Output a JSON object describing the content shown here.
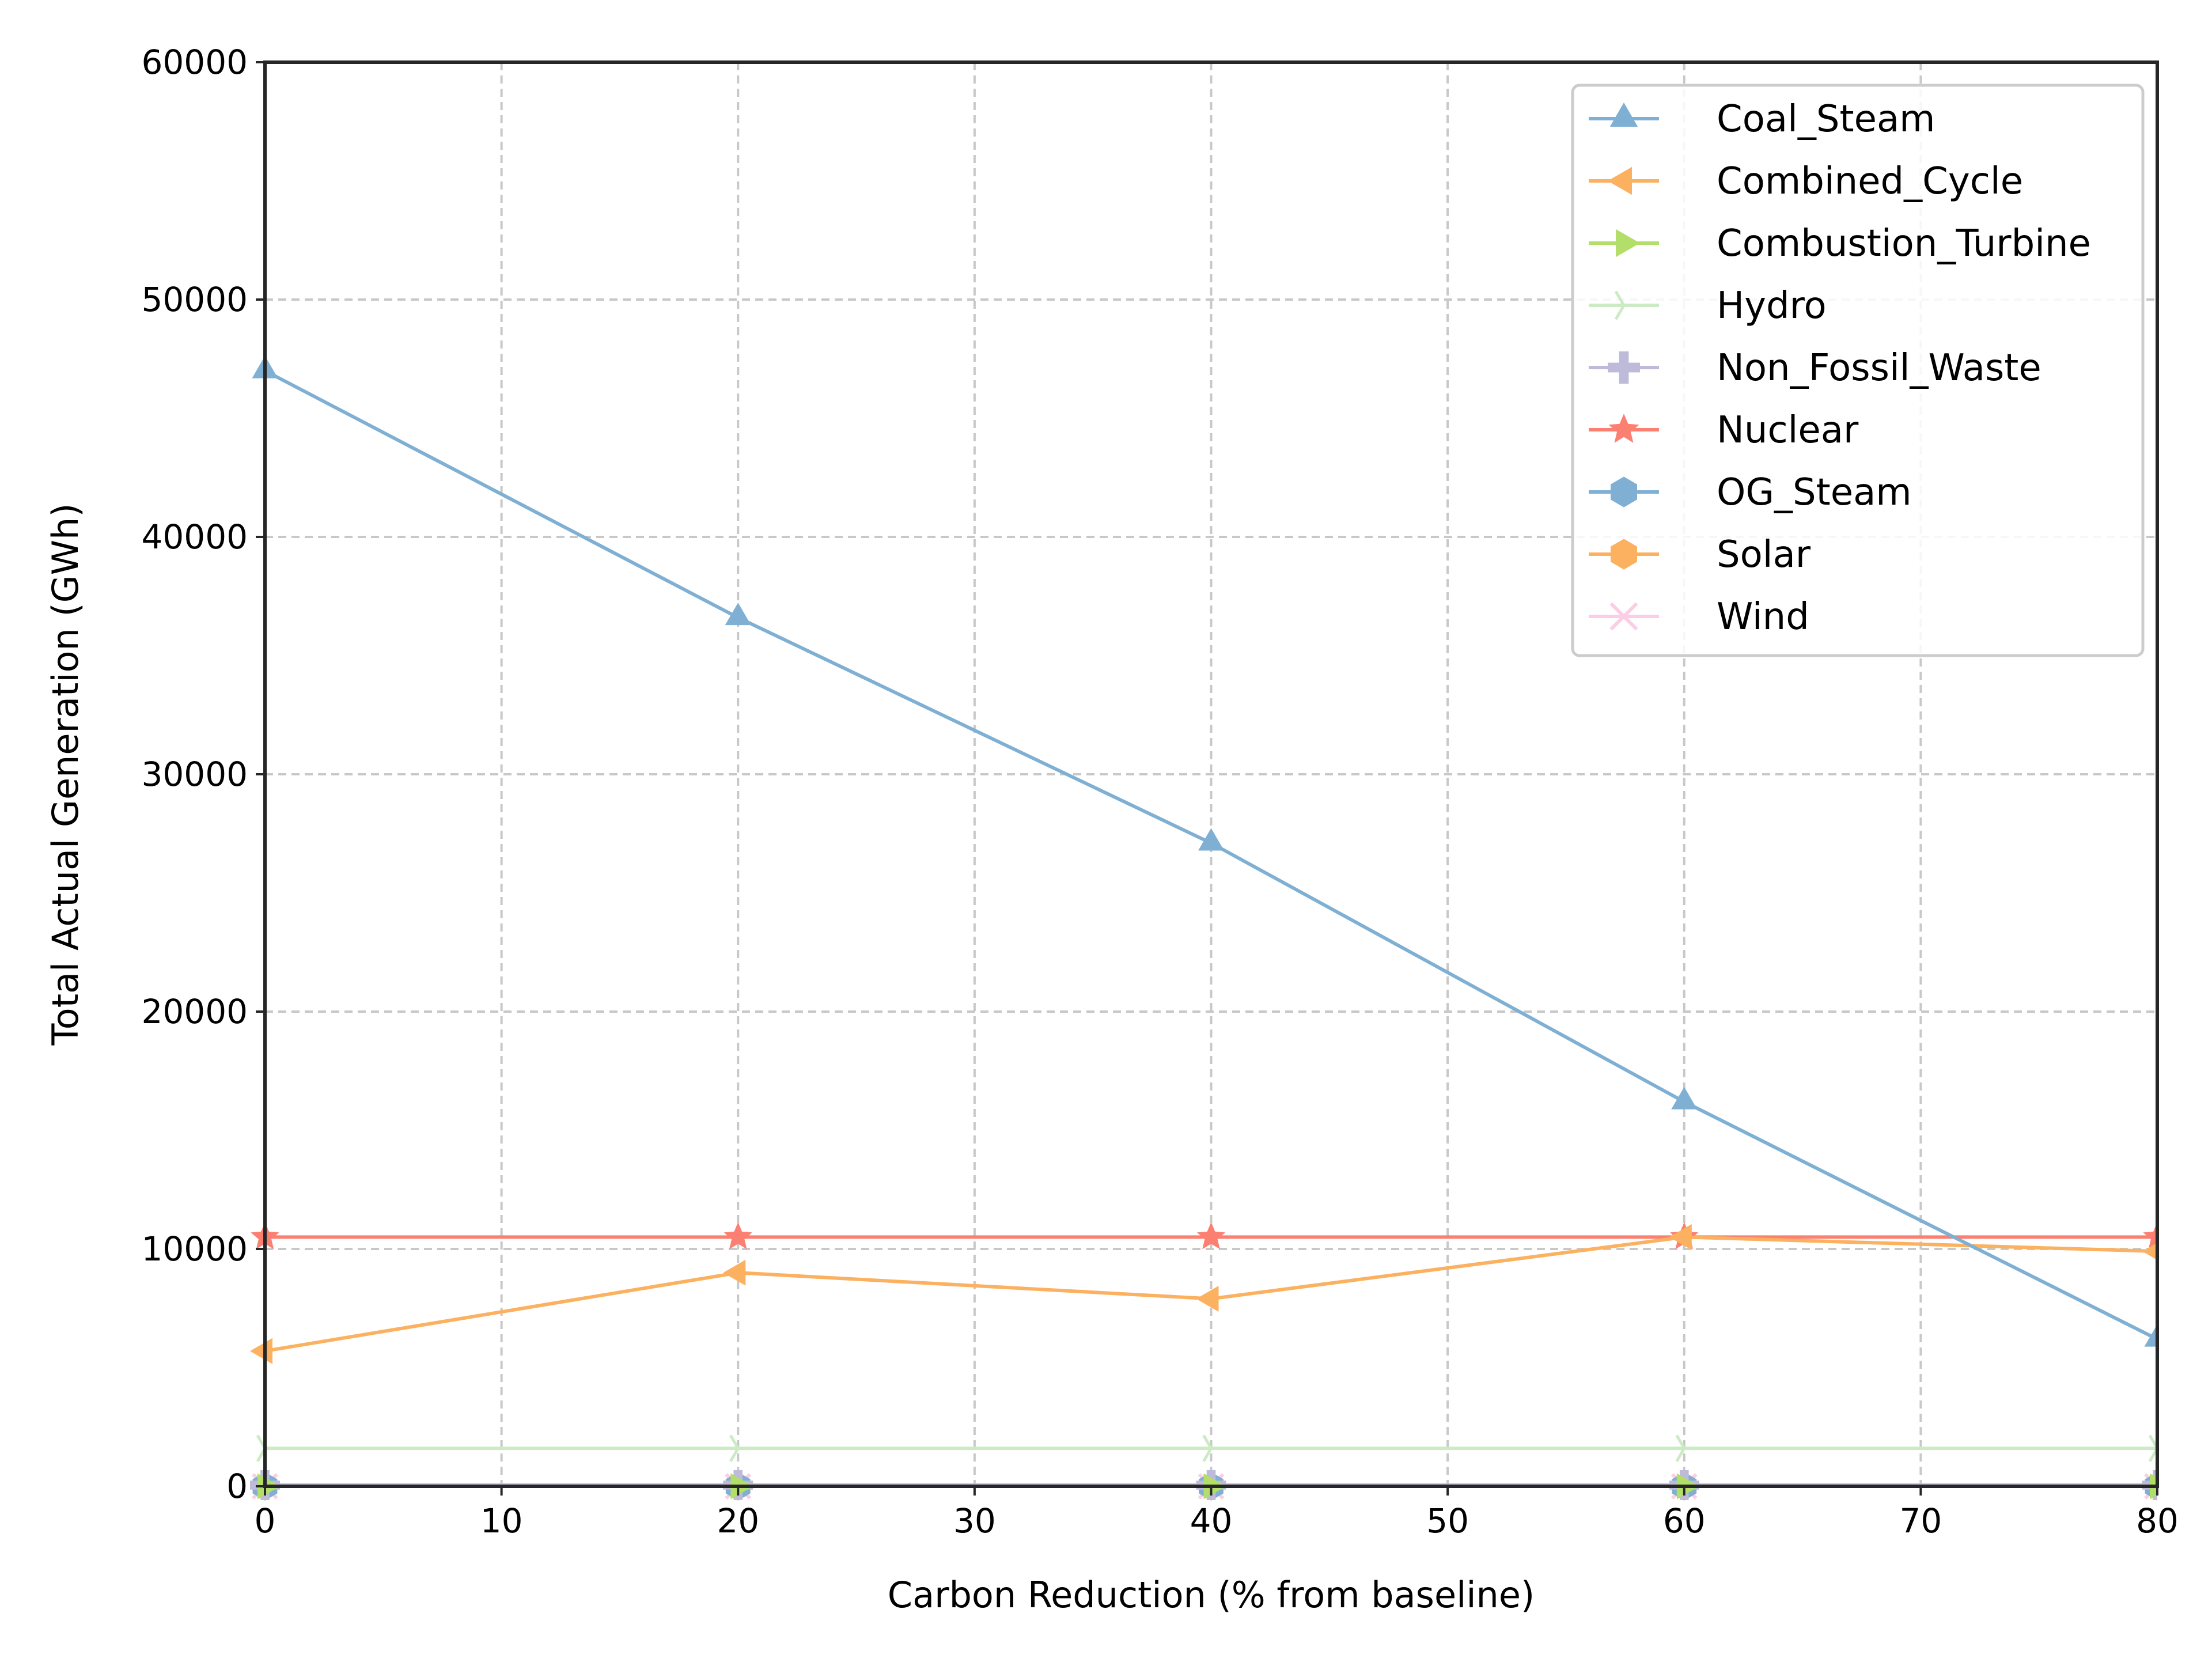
{
  "chart_data": {
    "type": "line",
    "title": "",
    "xlabel": "Carbon Reduction (% from baseline)",
    "ylabel": "Total Actual Generation (GWh)",
    "xlim": [
      0,
      80
    ],
    "ylim": [
      0,
      60000
    ],
    "x_ticks": [
      0,
      10,
      20,
      30,
      40,
      50,
      60,
      70,
      80
    ],
    "y_ticks": [
      0,
      10000,
      20000,
      30000,
      40000,
      50000,
      60000
    ],
    "grid": true,
    "legend_position": "top-right",
    "x": [
      0,
      20,
      40,
      60,
      80
    ],
    "series": [
      {
        "name": "Coal_Steam",
        "color": "#7fb0d4",
        "marker": "triangle-up",
        "values": [
          47000,
          36600,
          27100,
          16200,
          6200
        ]
      },
      {
        "name": "Combined_Cycle",
        "color": "#fbb160",
        "marker": "triangle-left",
        "values": [
          5700,
          9000,
          7900,
          10500,
          9900
        ]
      },
      {
        "name": "Combustion_Turbine",
        "color": "#b3de69",
        "marker": "triangle-right",
        "values": [
          0,
          0,
          0,
          0,
          0
        ]
      },
      {
        "name": "Hydro",
        "color": "#ccebc5",
        "marker": "tri-right",
        "values": [
          1600,
          1600,
          1600,
          1600,
          1600
        ]
      },
      {
        "name": "Non_Fossil_Waste",
        "color": "#bebada",
        "marker": "plus",
        "values": [
          50,
          50,
          50,
          50,
          50
        ]
      },
      {
        "name": "Nuclear",
        "color": "#fb8072",
        "marker": "star",
        "values": [
          10500,
          10500,
          10500,
          10500,
          10500
        ]
      },
      {
        "name": "OG_Steam",
        "color": "#7fb0d4",
        "marker": "hexagon",
        "values": [
          0,
          0,
          0,
          0,
          0
        ]
      },
      {
        "name": "Solar",
        "color": "#fbb160",
        "marker": "hexagon",
        "values": [
          0,
          0,
          0,
          0,
          0
        ]
      },
      {
        "name": "Wind",
        "color": "#fccde5",
        "marker": "x",
        "values": [
          0,
          0,
          0,
          0,
          0
        ]
      }
    ]
  }
}
